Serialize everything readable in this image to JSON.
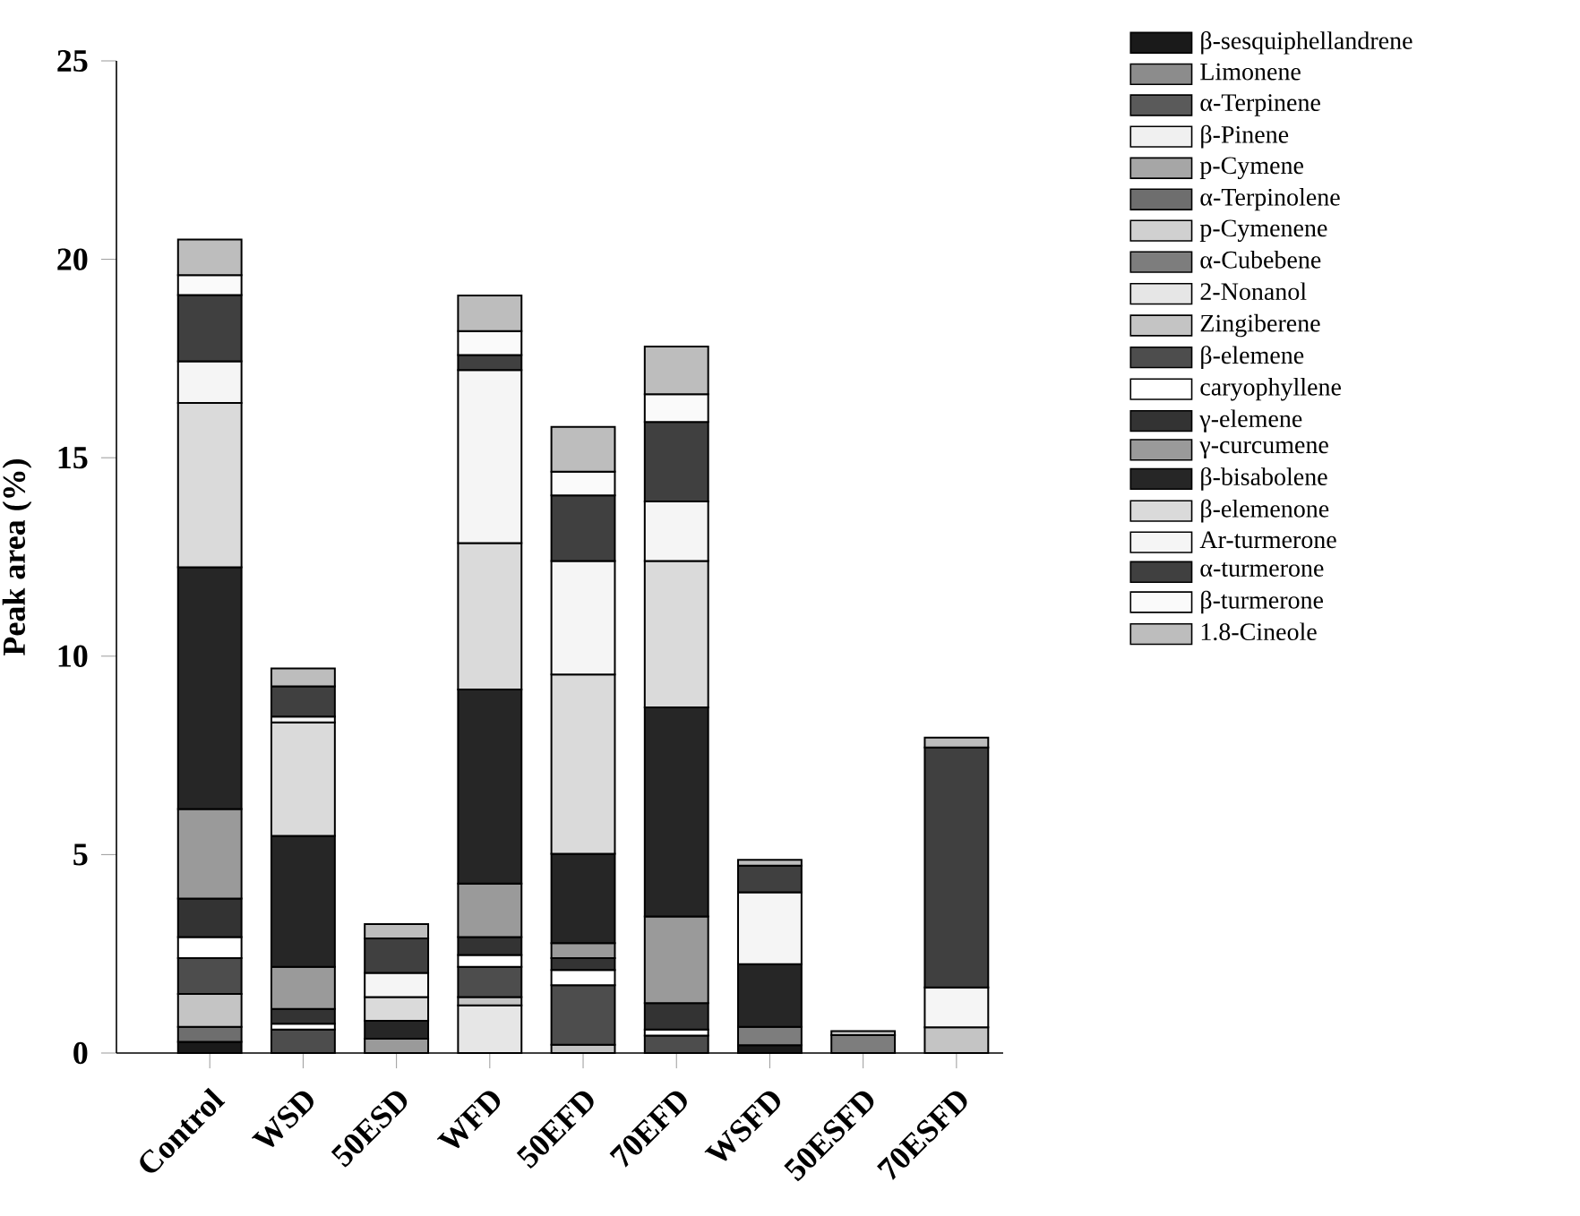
{
  "chart_data": {
    "type": "bar",
    "stacked": true,
    "ylabel": "Peak area (%)",
    "ylim": [
      0,
      25
    ],
    "yticks": [
      0,
      5,
      10,
      15,
      20,
      25
    ],
    "legend": "top right",
    "categories": [
      "Control",
      "WSD",
      "50ESD",
      "WFD",
      "50EFD",
      "70EFD",
      "WSFD",
      "50ESFD",
      "70ESFD"
    ],
    "series": [
      {
        "name": "β-sesquiphellandrene",
        "color": "#1a1a1a",
        "values": [
          0.28,
          null,
          null,
          null,
          null,
          null,
          0.2,
          null,
          null
        ]
      },
      {
        "name": "Limonene",
        "color": "#8c8c8c",
        "values": [
          null,
          null,
          null,
          null,
          null,
          null,
          null,
          null,
          null
        ]
      },
      {
        "name": "α-Terpinene",
        "color": "#5a5a5a",
        "values": [
          null,
          null,
          null,
          null,
          null,
          null,
          null,
          null,
          null
        ]
      },
      {
        "name": "β-Pinene",
        "color": "#f0f0f0",
        "values": [
          null,
          null,
          null,
          null,
          null,
          null,
          null,
          null,
          null
        ]
      },
      {
        "name": "p-Cymene",
        "color": "#a6a6a6",
        "values": [
          null,
          null,
          null,
          null,
          null,
          null,
          null,
          null,
          null
        ]
      },
      {
        "name": "α-Terpinolene",
        "color": "#6e6e6e",
        "values": [
          0.38,
          null,
          null,
          null,
          null,
          null,
          null,
          null,
          null
        ]
      },
      {
        "name": "p-Cymenene",
        "color": "#d0d0d0",
        "values": [
          null,
          null,
          null,
          null,
          null,
          null,
          null,
          null,
          null
        ]
      },
      {
        "name": "α-Cubebene",
        "color": "#7d7d7d",
        "values": [
          null,
          null,
          null,
          null,
          null,
          null,
          0.46,
          0.45,
          null
        ]
      },
      {
        "name": "2-Nonanol",
        "color": "#e6e6e6",
        "values": [
          null,
          null,
          null,
          1.2,
          null,
          null,
          null,
          null,
          null
        ]
      },
      {
        "name": "Zingiberene",
        "color": "#c4c4c4",
        "values": [
          0.83,
          null,
          null,
          0.21,
          0.21,
          null,
          null,
          null,
          0.65
        ]
      },
      {
        "name": "β-elemene",
        "color": "#4d4d4d",
        "values": [
          0.9,
          0.59,
          null,
          0.76,
          1.5,
          0.44,
          null,
          null,
          null
        ]
      },
      {
        "name": "caryophyllene",
        "color": "#ffffff",
        "values": [
          0.53,
          0.15,
          null,
          0.3,
          0.38,
          0.15,
          null,
          null,
          null
        ]
      },
      {
        "name": "γ-elemene",
        "color": "#333333",
        "values": [
          0.97,
          0.37,
          null,
          0.45,
          0.3,
          0.67,
          null,
          null,
          null
        ]
      },
      {
        "name": "γ-curcumene",
        "color": "#9a9a9a",
        "values": [
          2.26,
          1.06,
          0.36,
          1.35,
          0.38,
          2.18,
          null,
          null,
          null
        ]
      },
      {
        "name": "β-bisabolene",
        "color": "#262626",
        "values": [
          6.09,
          3.3,
          0.45,
          4.89,
          2.25,
          5.27,
          1.58,
          null,
          null
        ]
      },
      {
        "name": "β-elemenone",
        "color": "#dadada",
        "values": [
          4.14,
          2.86,
          0.6,
          3.69,
          4.52,
          3.69,
          null,
          null,
          null
        ]
      },
      {
        "name": "Ar-turmerone",
        "color": "#f5f5f5",
        "values": [
          1.05,
          0.15,
          0.61,
          4.36,
          2.86,
          1.5,
          1.81,
          null,
          1.0
        ]
      },
      {
        "name": "α-turmerone",
        "color": "#404040",
        "values": [
          1.67,
          0.76,
          0.87,
          0.38,
          1.65,
          2.0,
          0.67,
          null,
          6.05
        ]
      },
      {
        "name": "β-turmerone",
        "color": "#fafafa",
        "values": [
          0.5,
          null,
          null,
          0.6,
          0.6,
          0.7,
          null,
          null,
          null
        ]
      },
      {
        "name": "1.8-Cineole",
        "color": "#bdbdbd",
        "values": [
          0.9,
          0.45,
          0.36,
          0.9,
          1.13,
          1.2,
          0.15,
          0.1,
          0.25
        ]
      }
    ]
  }
}
